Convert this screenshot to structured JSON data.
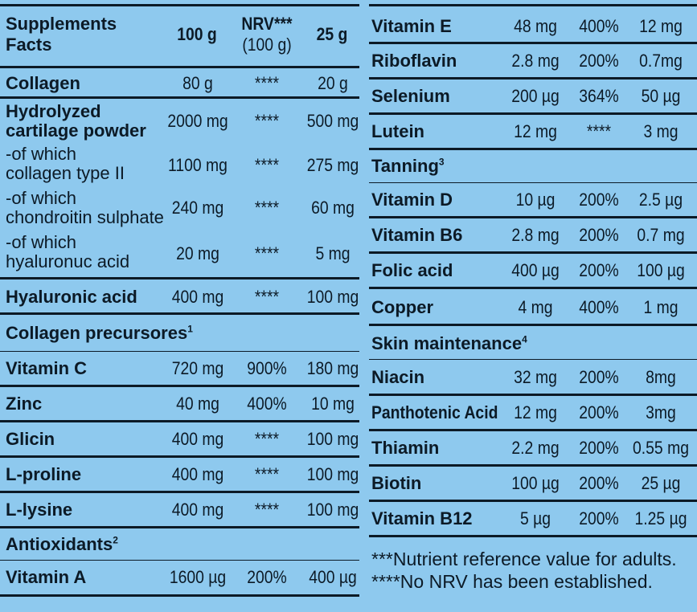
{
  "header": {
    "title_line1": "Supplements",
    "title_line2": "Facts",
    "col_100g": "100 g",
    "col_nrv": "NRV***",
    "col_nrv_sub": "(100 g)",
    "col_25g": "25 g"
  },
  "left_rows": [
    {
      "name": "Collagen",
      "v100": "80 g",
      "nrv": "****",
      "v25": "20 g"
    },
    {
      "name_line1": "Hydrolyzed",
      "name_line2": "cartilage powder",
      "v100": "2000 mg",
      "nrv": "****",
      "v25": "500 mg"
    },
    {
      "name_line1": "-of which",
      "name_line2": "collagen type II",
      "v100": "1100 mg",
      "nrv": "****",
      "v25": "275 mg"
    },
    {
      "name_line1": "-of which",
      "name_line2": "chondroitin sulphate",
      "v100": "240 mg",
      "nrv": "****",
      "v25": "60 mg"
    },
    {
      "name_line1": "-of which",
      "name_line2": "hyaluronuc acid",
      "v100": "20 mg",
      "nrv": "****",
      "v25": "5 mg"
    },
    {
      "name": "Hyaluronic acid",
      "v100": "400 mg",
      "nrv": "****",
      "v25": "100 mg"
    }
  ],
  "section_precursors": {
    "label": "Collagen precursores",
    "sup": "1"
  },
  "precursor_rows": [
    {
      "name": "Vitamin C",
      "v100": "720 mg",
      "nrv": "900%",
      "v25": "180 mg"
    },
    {
      "name": "Zinc",
      "v100": "40 mg",
      "nrv": "400%",
      "v25": "10 mg"
    },
    {
      "name": "Glicin",
      "v100": "400 mg",
      "nrv": "****",
      "v25": "100 mg"
    },
    {
      "name": "L-proline",
      "v100": "400 mg",
      "nrv": "****",
      "v25": "100 mg"
    },
    {
      "name": "L-lysine",
      "v100": "400 mg",
      "nrv": "****",
      "v25": "100 mg"
    }
  ],
  "section_antioxidants": {
    "label": "Antioxidants",
    "sup": "2"
  },
  "antioxidant_rows_left": [
    {
      "name": "Vitamin A",
      "v100": "1600 µg",
      "nrv": "200%",
      "v25": "400 µg"
    }
  ],
  "antioxidant_rows_right": [
    {
      "name": "Vitamin E",
      "v100": "48 mg",
      "nrv": "400%",
      "v25": "12 mg"
    },
    {
      "name": "Riboflavin",
      "v100": "2.8 mg",
      "nrv": "200%",
      "v25": "0.7mg"
    },
    {
      "name": "Selenium",
      "v100": "200 µg",
      "nrv": "364%",
      "v25": "50 µg"
    },
    {
      "name": "Lutein",
      "v100": "12 mg",
      "nrv": "****",
      "v25": "3 mg"
    }
  ],
  "section_tanning": {
    "label": "Tanning",
    "sup": "3"
  },
  "tanning_rows": [
    {
      "name": "Vitamin D",
      "v100": "10 µg",
      "nrv": "200%",
      "v25": "2.5 µg"
    },
    {
      "name": "Vitamin B6",
      "v100": "2.8 mg",
      "nrv": "200%",
      "v25": "0.7 mg"
    },
    {
      "name": "Folic acid",
      "v100": "400 µg",
      "nrv": "200%",
      "v25": "100 µg"
    },
    {
      "name": "Copper",
      "v100": "4 mg",
      "nrv": "400%",
      "v25": "1 mg"
    }
  ],
  "section_skin": {
    "label": "Skin maintenance",
    "sup": "4"
  },
  "skin_rows": [
    {
      "name": "Niacin",
      "v100": "32 mg",
      "nrv": "200%",
      "v25": "8mg"
    },
    {
      "name": "Panthotenic Acid",
      "v100": "12 mg",
      "nrv": "200%",
      "v25": "3mg"
    },
    {
      "name": "Thiamin",
      "v100": "2.2 mg",
      "nrv": "200%",
      "v25": "0.55 mg"
    },
    {
      "name": "Biotin",
      "v100": "100 µg",
      "nrv": "200%",
      "v25": "25 µg"
    },
    {
      "name": "Vitamin B12",
      "v100": "5 µg",
      "nrv": "200%",
      "v25": "1.25 µg"
    }
  ],
  "footnotes": {
    "line1": "***Nutrient reference value for adults.",
    "line2": "****No NRV has been established."
  },
  "colors": {
    "background": "#8ec9ee",
    "text": "#0c1a26"
  }
}
